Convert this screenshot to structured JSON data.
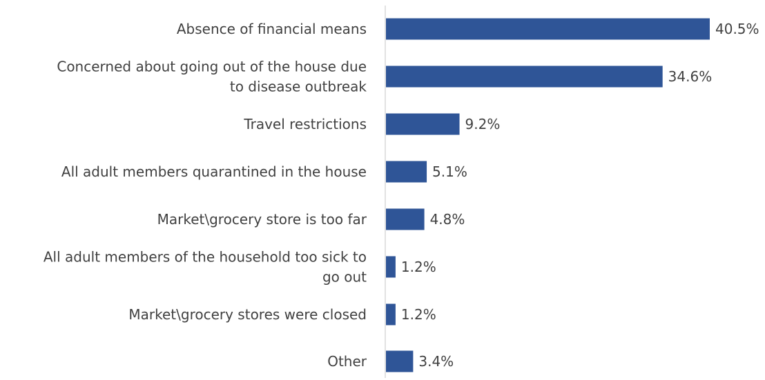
{
  "chart_data": {
    "type": "bar",
    "orientation": "horizontal",
    "title": "",
    "xlabel": "",
    "ylabel": "",
    "xlim": [
      0,
      40.5
    ],
    "grid": false,
    "legend": "none",
    "bar_color": "#2f5597",
    "axis_color": "#d9d9d9",
    "text_color": "#404040",
    "categories": [
      {
        "lines": [
          "Absence of financial means"
        ]
      },
      {
        "lines": [
          "Concerned about going out of the house due",
          "to disease outbreak"
        ]
      },
      {
        "lines": [
          "Travel restrictions"
        ]
      },
      {
        "lines": [
          "All adult members quarantined in the house"
        ]
      },
      {
        "lines": [
          "Market\\grocery store is too far"
        ]
      },
      {
        "lines": [
          "All adult members of the household too sick to",
          "go out"
        ]
      },
      {
        "lines": [
          "Market\\grocery stores were closed"
        ]
      },
      {
        "lines": [
          "Other"
        ]
      }
    ],
    "values": [
      40.5,
      34.6,
      9.2,
      5.1,
      4.8,
      1.2,
      1.2,
      3.4
    ],
    "value_labels": [
      "40.5%",
      "34.6%",
      "9.2%",
      "5.1%",
      "4.8%",
      "1.2%",
      "1.2%",
      "3.4%"
    ]
  }
}
